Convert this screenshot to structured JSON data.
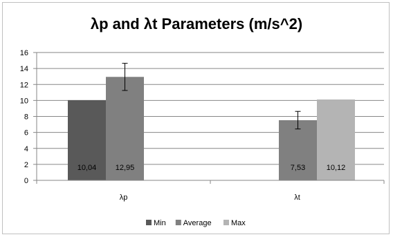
{
  "chart_data": {
    "type": "bar",
    "title": "λp and λt Parameters (m/s^2)",
    "xlabel": "",
    "ylabel": "",
    "categories": [
      "λp",
      "λt"
    ],
    "ylim": [
      0,
      16
    ],
    "yticks": [
      0,
      2,
      4,
      6,
      8,
      10,
      12,
      14,
      16
    ],
    "grid": true,
    "legend_position": "bottom",
    "series": [
      {
        "name": "Min",
        "color": "#595959",
        "values": [
          10.04,
          null
        ],
        "labels": [
          "10,04",
          ""
        ]
      },
      {
        "name": "Average",
        "color": "#808080",
        "values": [
          12.95,
          7.53
        ],
        "labels": [
          "12,95",
          "7,53"
        ],
        "error": [
          1.7,
          1.1
        ]
      },
      {
        "name": "Max",
        "color": "#b4b4b4",
        "values": [
          null,
          10.12
        ],
        "labels": [
          "",
          "10,12"
        ]
      }
    ]
  }
}
